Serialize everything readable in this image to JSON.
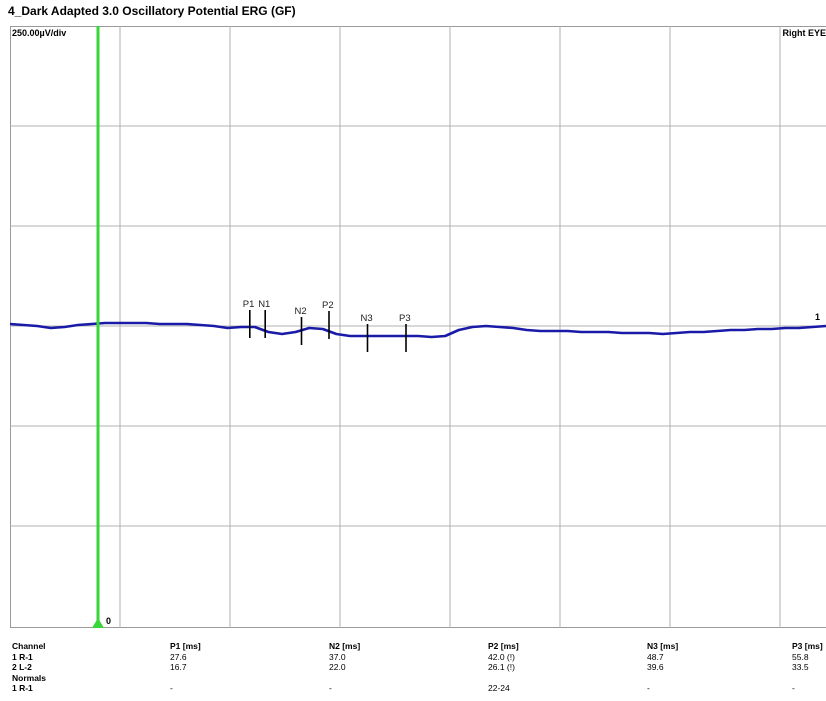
{
  "title": "4_Dark Adapted 3.0 Oscillatory Potential ERG (GF)",
  "scale_label": "250.00µV/div",
  "eye_label": "Right EYE",
  "trace_label": "1",
  "cursor_label": "0",
  "chart_data": {
    "type": "line",
    "title": "4_Dark Adapted 3.0 Oscillatory Potential ERG (GF)",
    "y_scale": "250.00µV/div",
    "grid": true,
    "grid_divisions": {
      "x": 7.5,
      "y": 6
    },
    "trace_color": "#1a1aa8",
    "cursor_color": "#39d639",
    "series": [
      {
        "name": "1",
        "y_div": [
          0.02,
          0.01,
          0.0,
          -0.02,
          -0.01,
          0.01,
          0.02,
          0.03,
          0.03,
          0.03,
          0.03,
          0.02,
          0.02,
          0.02,
          0.01,
          0.0,
          -0.02,
          -0.01,
          -0.01,
          -0.06,
          -0.08,
          -0.06,
          -0.02,
          -0.03,
          -0.08,
          -0.1,
          -0.1,
          -0.1,
          -0.1,
          -0.1,
          -0.1,
          -0.11,
          -0.1,
          -0.04,
          -0.01,
          -0.0,
          -0.01,
          -0.02,
          -0.04,
          -0.05,
          -0.05,
          -0.05,
          -0.06,
          -0.06,
          -0.06,
          -0.07,
          -0.07,
          -0.07,
          -0.08,
          -0.07,
          -0.06,
          -0.06,
          -0.05,
          -0.04,
          -0.04,
          -0.03,
          -0.03,
          -0.02,
          -0.02,
          -0.01,
          0.0
        ]
      }
    ],
    "markers": [
      {
        "label": "P1",
        "x_div": 2.18,
        "y_div": 0.02
      },
      {
        "label": "N1",
        "x_div": 2.32,
        "y_div": 0.02
      },
      {
        "label": "N2",
        "x_div": 2.65,
        "y_div": -0.05
      },
      {
        "label": "P2",
        "x_div": 2.9,
        "y_div": 0.01
      },
      {
        "label": "N3",
        "x_div": 3.25,
        "y_div": -0.12
      },
      {
        "label": "P3",
        "x_div": 3.6,
        "y_div": -0.12
      }
    ],
    "cursor": {
      "label": "0",
      "x_div": 0.8
    }
  },
  "results": {
    "columns": [
      {
        "header": "Channel",
        "rows": [
          "1 R-1",
          "2 L-2",
          "Normals",
          "1 R-1"
        ]
      },
      {
        "header": "P1 [ms]",
        "rows": [
          "27.6",
          "16.7",
          "",
          "-"
        ]
      },
      {
        "header": "N2 [ms]",
        "rows": [
          "37.0",
          "22.0",
          "",
          "-"
        ]
      },
      {
        "header": "P2 [ms]",
        "rows": [
          "42.0 (!)",
          "26.1 (!)",
          "",
          "22-24"
        ]
      },
      {
        "header": "N3 [ms]",
        "rows": [
          "48.7",
          "39.6",
          "",
          "-"
        ]
      },
      {
        "header": "P3 [ms]",
        "rows": [
          "55.8",
          "33.5",
          "",
          "-"
        ]
      }
    ]
  }
}
